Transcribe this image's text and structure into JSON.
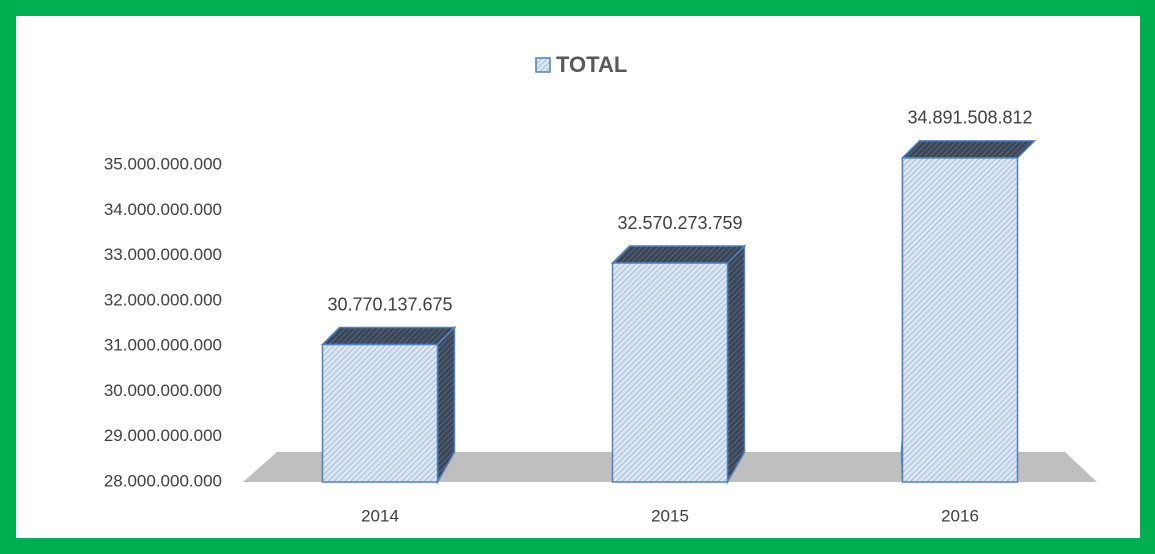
{
  "chart_data": {
    "type": "bar",
    "categories": [
      "2014",
      "2015",
      "2016"
    ],
    "series": [
      {
        "name": "TOTAL",
        "color": "#c6d9f1",
        "values": [
          30770137675,
          32570273759,
          34891508812
        ],
        "value_labels": [
          "30.770.137.675",
          "32.570.273.759",
          "34.891.508.812"
        ]
      }
    ],
    "ylim": [
      28000000000,
      35000000000
    ],
    "yticks": [
      {
        "value": 28000000000,
        "label": "28.000.000.000"
      },
      {
        "value": 29000000000,
        "label": "29.000.000.000"
      },
      {
        "value": 30000000000,
        "label": "30.000.000.000"
      },
      {
        "value": 31000000000,
        "label": "31.000.000.000"
      },
      {
        "value": 32000000000,
        "label": "32.000.000.000"
      },
      {
        "value": 33000000000,
        "label": "33.000.000.000"
      },
      {
        "value": 34000000000,
        "label": "34.000.000.000"
      },
      {
        "value": 35000000000,
        "label": "35.000.000.000"
      }
    ],
    "grid": false,
    "legend": "top"
  }
}
